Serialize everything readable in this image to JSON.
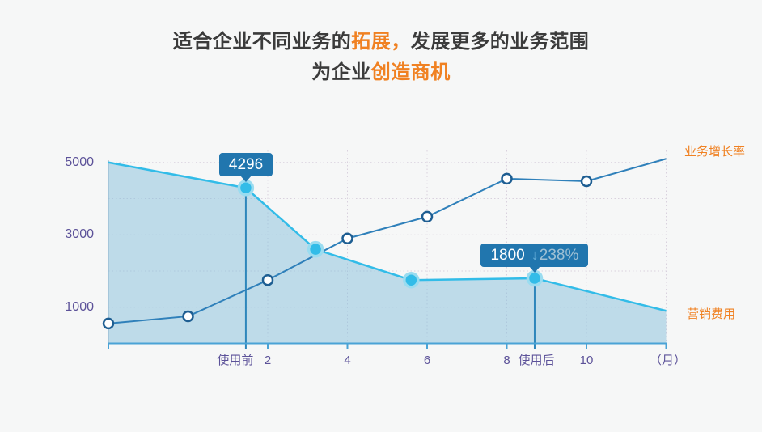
{
  "title": {
    "part1": "适合企业不同业务的",
    "part2": "拓展，",
    "part3": "发展更多的业务范围",
    "part4": "为企业",
    "part5": "创造商机",
    "accent_color": "#f08122",
    "text_color": "#3b3b3b"
  },
  "chart_data": {
    "type": "line",
    "x_unit_label": "（月）",
    "x_ticks": [
      2,
      4,
      6,
      8,
      10
    ],
    "grid_x_months": [
      0,
      2,
      4,
      6,
      8,
      10,
      12
    ],
    "grid_y_values": [
      1000,
      2000,
      3000,
      4000,
      5000
    ],
    "ytick_labels": [
      5000,
      3000,
      1000
    ],
    "x_range_months": [
      -2,
      12
    ],
    "ylim": [
      0,
      5300
    ],
    "grid": "dotted",
    "legend_position": "right",
    "series": [
      {
        "name": "业务增长率",
        "type": "line",
        "color": "#2f80ba",
        "marker": "open-circle",
        "x": [
          -2,
          0,
          2,
          4,
          6,
          8,
          10,
          12
        ],
        "values": [
          550,
          750,
          1750,
          2900,
          3500,
          4550,
          4480,
          5100
        ]
      },
      {
        "name": "营销费用",
        "type": "area",
        "color": "#32bce8",
        "fill": "rgba(133,191,220,0.5)",
        "marker": "filled-circle",
        "x": [
          -2,
          1.45,
          3.2,
          5.6,
          8.7,
          12
        ],
        "values": [
          5000,
          4296,
          2600,
          1750,
          1800,
          900
        ]
      }
    ],
    "annotations": [
      {
        "label": "4296",
        "x": 1.45,
        "value": 4296,
        "axis_label": "使用前",
        "axis_label_dx": -13
      },
      {
        "label": "1800",
        "x": 8.7,
        "value": 1800,
        "axis_label": "使用后",
        "axis_label_dx": 2,
        "direction": "down",
        "change": "238%"
      }
    ],
    "axis_color": "#4aa3d6",
    "label_color": "#5c5299",
    "legend_color": "#f08122",
    "tooltip_color": "#2176ae"
  }
}
